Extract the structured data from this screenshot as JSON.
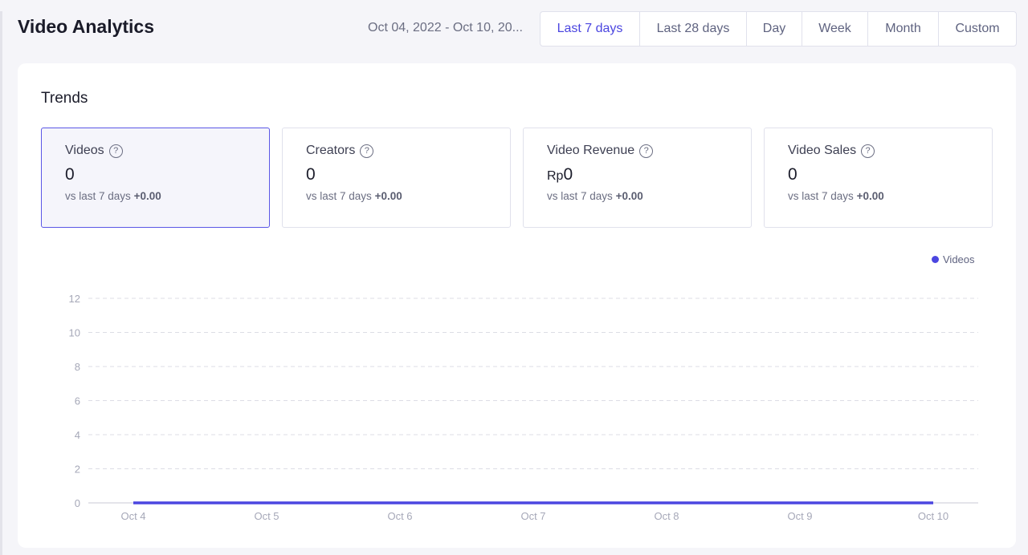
{
  "header": {
    "title": "Video Analytics",
    "date_range": "Oct 04, 2022 - Oct 10, 20...",
    "periods": [
      "Last 7 days",
      "Last 28 days",
      "Day",
      "Week",
      "Month",
      "Custom"
    ],
    "active_period": "Last 7 days"
  },
  "trends": {
    "title": "Trends",
    "cards": [
      {
        "label": "Videos",
        "prefix": "",
        "value": "0",
        "compare": "vs last 7 days",
        "delta": "+0.00",
        "active": true
      },
      {
        "label": "Creators",
        "prefix": "",
        "value": "0",
        "compare": "vs last 7 days",
        "delta": "+0.00"
      },
      {
        "label": "Video Revenue",
        "prefix": "Rp",
        "value": "0",
        "compare": "vs last 7 days",
        "delta": "+0.00"
      },
      {
        "label": "Video Sales",
        "prefix": "",
        "value": "0",
        "compare": "vs last 7 days",
        "delta": "+0.00"
      }
    ]
  },
  "chart_data": {
    "type": "line",
    "categories": [
      "Oct 4",
      "Oct 5",
      "Oct 6",
      "Oct 7",
      "Oct 8",
      "Oct 9",
      "Oct 10"
    ],
    "series": [
      {
        "name": "Videos",
        "values": [
          0,
          0,
          0,
          0,
          0,
          0,
          0
        ],
        "color": "#4b46e0"
      }
    ],
    "yticks": [
      0,
      2,
      4,
      6,
      8,
      10,
      12
    ],
    "ylim": [
      0,
      12
    ],
    "grid": true,
    "legend": "top-right"
  }
}
